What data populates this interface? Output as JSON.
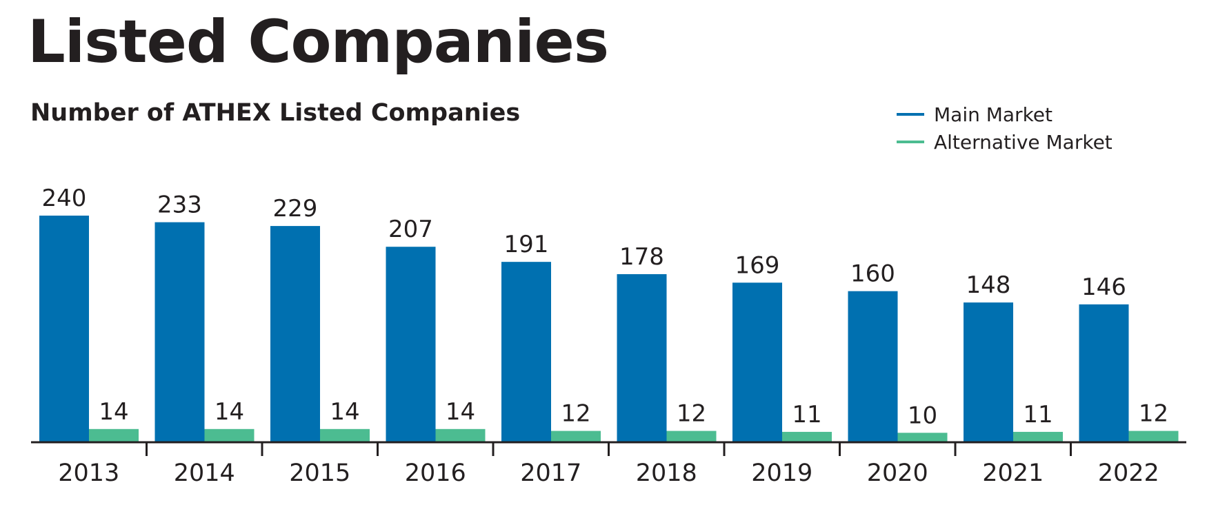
{
  "title": "Listed Companies",
  "subtitle": "Number of ATHEX Listed Companies",
  "colors": {
    "main_market": "#0070b0",
    "alternative_market": "#4cbc91",
    "text": "#231f20",
    "axis": "#231f20"
  },
  "legend": [
    {
      "label": "Main Market",
      "color": "#0070b0"
    },
    {
      "label": "Alternative Market",
      "color": "#4cbc91"
    }
  ],
  "chart_data": {
    "type": "bar",
    "title": "Listed Companies",
    "subtitle": "Number of ATHEX Listed Companies",
    "categories": [
      "2013",
      "2014",
      "2015",
      "2016",
      "2017",
      "2018",
      "2019",
      "2020",
      "2021",
      "2022"
    ],
    "series": [
      {
        "name": "Main Market",
        "values": [
          240,
          233,
          229,
          207,
          191,
          178,
          169,
          160,
          148,
          146
        ]
      },
      {
        "name": "Alternative Market",
        "values": [
          14,
          14,
          14,
          14,
          12,
          12,
          11,
          10,
          11,
          12
        ]
      }
    ],
    "xlabel": "",
    "ylabel": "",
    "ylim": [
      0,
      240
    ],
    "grid": false,
    "legend_position": "top-right",
    "data_labels": true
  }
}
